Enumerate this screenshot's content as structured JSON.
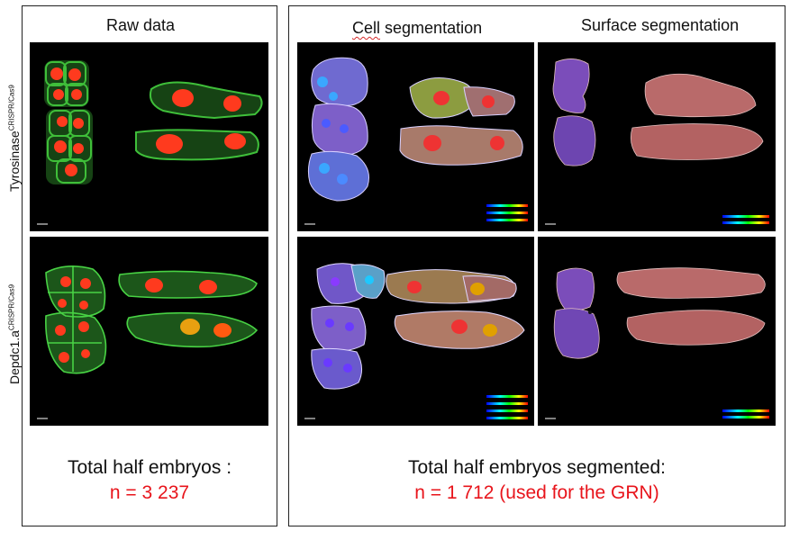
{
  "left_box": {
    "title": "Raw data",
    "total_label": "Total half embryos :",
    "count": "n = 3 237"
  },
  "right_box": {
    "col1_title_word1": "Cell",
    "col1_title_word2": "segmentation",
    "col2_title": "Surface segmentation",
    "total_label": "Total half embryos segmented:",
    "count": "n = 1 712  (used for the GRN)"
  },
  "rows": [
    {
      "gene": "Tyrosinase",
      "superscript": "CRISPR/Cas9"
    },
    {
      "gene": "Depdc1.a",
      "superscript": "CRISPR/Cas9"
    }
  ],
  "colors": {
    "count_red": "#e8141b",
    "raw_green": "#3fbf3a",
    "nucleus_red": "#ff3a1e",
    "cell_purple": "#8a6bd8",
    "surface_pink": "#c8706e",
    "surface_purple": "#8b5cc9"
  }
}
